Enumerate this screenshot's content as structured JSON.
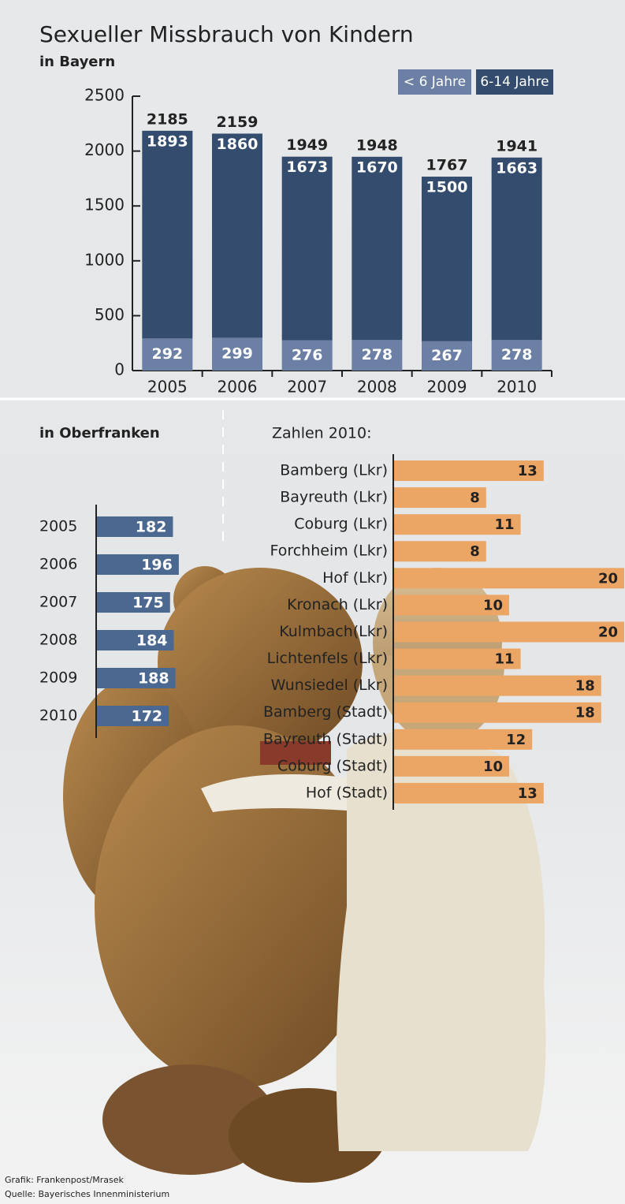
{
  "chart_data": [
    {
      "type": "bar",
      "stacked": true,
      "title": "Sexueller Missbrauch von Kindern",
      "subtitle": "in Bayern",
      "categories": [
        "2005",
        "2006",
        "2007",
        "2008",
        "2009",
        "2010"
      ],
      "series": [
        {
          "name": "< 6 Jahre",
          "color": "#6b80a4",
          "values": [
            292,
            299,
            276,
            278,
            267,
            278
          ]
        },
        {
          "name": "6-14 Jahre",
          "color": "#344c6d",
          "values": [
            1893,
            1860,
            1673,
            1670,
            1500,
            1663
          ]
        }
      ],
      "totals": [
        2185,
        2159,
        1949,
        1948,
        1767,
        1941
      ],
      "ylim": [
        0,
        2500
      ],
      "yticks": [
        0,
        500,
        1000,
        1500,
        2000,
        2500
      ]
    },
    {
      "type": "hbar",
      "title": "in Oberfranken",
      "color": "#4a6890",
      "categories": [
        "2005",
        "2006",
        "2007",
        "2008",
        "2009",
        "2010"
      ],
      "values": [
        182,
        196,
        175,
        184,
        188,
        172
      ]
    },
    {
      "type": "hbar",
      "title": "Zahlen 2010:",
      "color": "#eba565",
      "categories": [
        "Bamberg (Lkr)",
        "Bayreuth (Lkr)",
        "Coburg (Lkr)",
        "Forchheim (Lkr)",
        "Hof (Lkr)",
        "Kronach (Lkr)",
        "Kulmbach(Lkr)",
        "Lichtenfels (Lkr)",
        "Wunsiedel (Lkr)",
        "Bamberg (Stadt)",
        "Bayreuth (Stadt)",
        "Coburg (Stadt)",
        "Hof (Stadt)"
      ],
      "values": [
        13,
        8,
        11,
        8,
        20,
        10,
        20,
        11,
        18,
        18,
        12,
        10,
        13
      ]
    }
  ],
  "credits": [
    "Grafik: Frankenpost/Mrasek",
    "Quelle: Bayerisches Innenministerium"
  ]
}
